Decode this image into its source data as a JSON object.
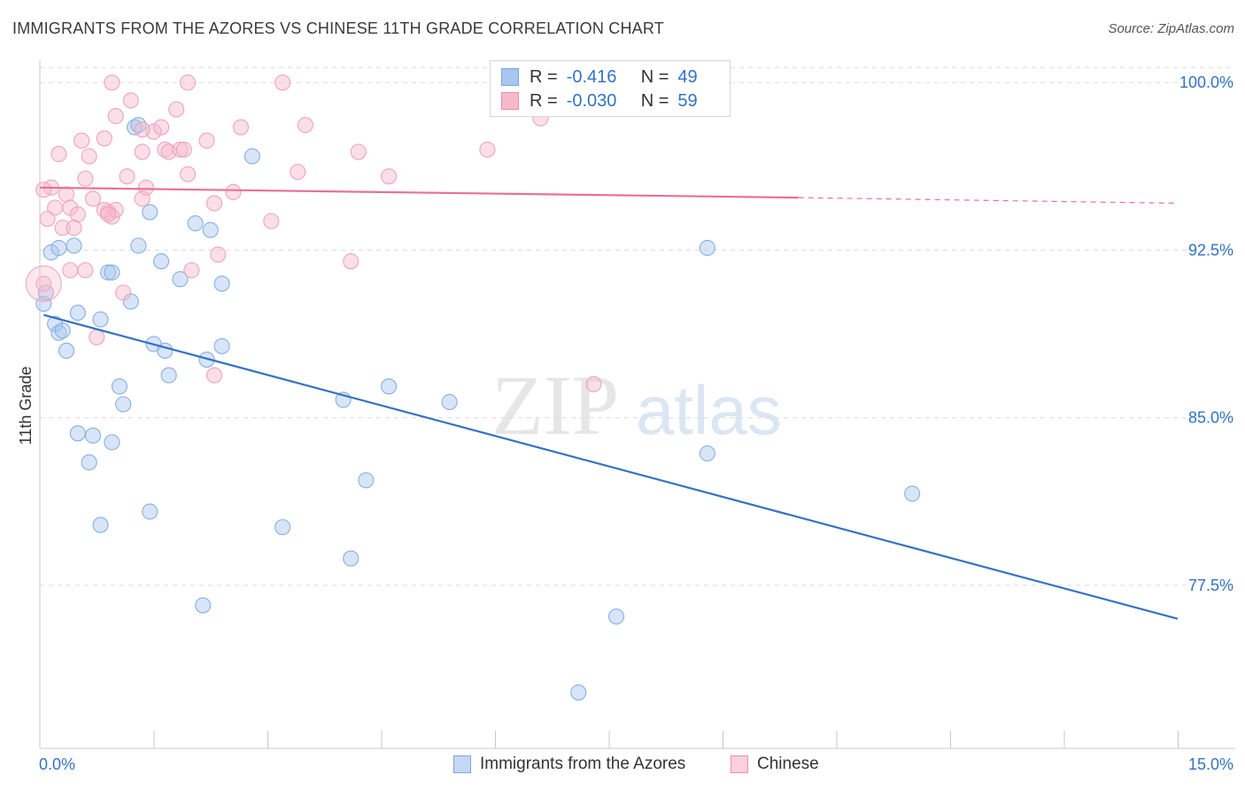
{
  "header": {
    "title": "IMMIGRANTS FROM THE AZORES VS CHINESE 11TH GRADE CORRELATION CHART",
    "source": "Source: ZipAtlas.com"
  },
  "watermark": {
    "zip": "ZIP",
    "atlas": "atlas"
  },
  "legend": {
    "rows": [
      {
        "r_label": "R =",
        "r_value": "-0.416",
        "n_label": "N =",
        "n_value": "49",
        "color": "#a9c6ef",
        "border": "#7aa6e0"
      },
      {
        "r_label": "R =",
        "r_value": "-0.030",
        "n_label": "N =",
        "n_value": "59",
        "color": "#f6b9cb",
        "border": "#ec8fab"
      }
    ]
  },
  "bottom_legend": [
    {
      "label": "Immigrants from the Azores",
      "color": "#c4d8f4",
      "border": "#7aa6e0"
    },
    {
      "label": "Chinese",
      "color": "#fad0dc",
      "border": "#ec8fab"
    }
  ],
  "chart_data": {
    "type": "scatter",
    "title": "IMMIGRANTS FROM THE AZORES VS CHINESE 11TH GRADE CORRELATION CHART",
    "xlabel": "",
    "ylabel": "11th Grade",
    "xlim": [
      0,
      15
    ],
    "ylim": [
      70.2,
      101.0
    ],
    "x_tick_labels": [
      {
        "value": 0,
        "label": "0.0%"
      },
      {
        "value": 15,
        "label": "15.0%"
      }
    ],
    "y_tick_labels": [
      {
        "value": 100,
        "label": "100.0%"
      },
      {
        "value": 92.5,
        "label": "92.5%"
      },
      {
        "value": 85,
        "label": "85.0%"
      },
      {
        "value": 77.5,
        "label": "77.5%"
      }
    ],
    "series": [
      {
        "name": "Immigrants from the Azores",
        "color": "#3373c4",
        "fill": "rgba(169,198,239,0.45)",
        "stroke": "#86afe4",
        "trend": {
          "x0": 0.05,
          "y0": 89.6,
          "x1": 15.0,
          "y1": 76.0
        },
        "points": [
          [
            0.05,
            90.1
          ],
          [
            0.08,
            90.6
          ],
          [
            0.15,
            92.4
          ],
          [
            0.2,
            89.2
          ],
          [
            0.25,
            88.8
          ],
          [
            0.3,
            88.9
          ],
          [
            0.45,
            92.7
          ],
          [
            0.25,
            92.6
          ],
          [
            0.35,
            88.0
          ],
          [
            0.5,
            89.7
          ],
          [
            0.8,
            89.4
          ],
          [
            0.9,
            91.5
          ],
          [
            0.95,
            91.5
          ],
          [
            1.2,
            90.2
          ],
          [
            1.3,
            92.7
          ],
          [
            1.45,
            94.2
          ],
          [
            1.6,
            92.0
          ],
          [
            1.5,
            88.3
          ],
          [
            1.65,
            88.0
          ],
          [
            1.7,
            86.9
          ],
          [
            1.85,
            91.2
          ],
          [
            2.05,
            93.7
          ],
          [
            2.25,
            93.4
          ],
          [
            2.4,
            91.0
          ],
          [
            2.4,
            88.2
          ],
          [
            2.2,
            87.6
          ],
          [
            1.25,
            98.0
          ],
          [
            1.3,
            98.1
          ],
          [
            2.8,
            96.7
          ],
          [
            1.05,
            86.4
          ],
          [
            1.1,
            85.6
          ],
          [
            0.5,
            84.3
          ],
          [
            0.7,
            84.2
          ],
          [
            0.95,
            83.9
          ],
          [
            0.65,
            83.0
          ],
          [
            0.8,
            80.2
          ],
          [
            1.45,
            80.8
          ],
          [
            3.2,
            80.1
          ],
          [
            2.15,
            76.6
          ],
          [
            4.0,
            85.8
          ],
          [
            4.6,
            86.4
          ],
          [
            5.4,
            85.7
          ],
          [
            4.3,
            82.2
          ],
          [
            4.1,
            78.7
          ],
          [
            7.6,
            76.1
          ],
          [
            8.8,
            92.6
          ],
          [
            8.8,
            83.4
          ],
          [
            11.5,
            81.6
          ],
          [
            7.1,
            72.7
          ]
        ]
      },
      {
        "name": "Chinese",
        "color": "#e8709a",
        "fill": "rgba(246,185,203,0.45)",
        "stroke": "#eea4bb",
        "trend": {
          "x0": 0.0,
          "y0": 95.3,
          "x1": 10.0,
          "y1": 94.85,
          "dashed_to": 15.0,
          "dashed_y": 94.6
        },
        "points": [
          [
            0.05,
            91.0
          ],
          [
            0.15,
            95.3
          ],
          [
            0.25,
            96.8
          ],
          [
            0.35,
            95.0
          ],
          [
            0.4,
            94.4
          ],
          [
            0.55,
            97.4
          ],
          [
            0.6,
            95.7
          ],
          [
            0.65,
            96.7
          ],
          [
            0.7,
            94.8
          ],
          [
            0.5,
            94.1
          ],
          [
            0.85,
            97.5
          ],
          [
            0.9,
            94.2
          ],
          [
            0.95,
            94.0
          ],
          [
            0.85,
            94.3
          ],
          [
            1.0,
            98.5
          ],
          [
            1.15,
            95.8
          ],
          [
            1.2,
            99.2
          ],
          [
            1.35,
            96.9
          ],
          [
            1.4,
            95.3
          ],
          [
            1.5,
            97.8
          ],
          [
            1.6,
            98.0
          ],
          [
            1.65,
            97.0
          ],
          [
            1.7,
            96.9
          ],
          [
            1.8,
            98.8
          ],
          [
            1.85,
            97.0
          ],
          [
            1.9,
            97.0
          ],
          [
            1.95,
            95.9
          ],
          [
            2.0,
            91.6
          ],
          [
            2.2,
            97.4
          ],
          [
            2.3,
            94.6
          ],
          [
            2.35,
            92.3
          ],
          [
            2.55,
            95.1
          ],
          [
            2.65,
            98.0
          ],
          [
            3.05,
            93.8
          ],
          [
            3.4,
            96.0
          ],
          [
            3.5,
            98.1
          ],
          [
            4.1,
            92.0
          ],
          [
            4.2,
            96.9
          ],
          [
            4.6,
            95.8
          ],
          [
            0.95,
            100.0
          ],
          [
            1.95,
            100.0
          ],
          [
            3.2,
            100.0
          ],
          [
            0.6,
            91.6
          ],
          [
            1.1,
            90.6
          ],
          [
            0.75,
            88.6
          ],
          [
            2.3,
            86.9
          ],
          [
            0.2,
            94.4
          ],
          [
            0.3,
            93.5
          ],
          [
            0.1,
            93.9
          ],
          [
            0.45,
            93.5
          ],
          [
            1.0,
            94.3
          ],
          [
            1.35,
            94.8
          ],
          [
            0.4,
            91.6
          ],
          [
            7.3,
            86.5
          ],
          [
            5.9,
            97.0
          ],
          [
            6.6,
            98.4
          ],
          [
            1.35,
            97.9
          ],
          [
            0.05,
            95.2
          ],
          [
            0.9,
            94.1
          ]
        ]
      }
    ]
  }
}
